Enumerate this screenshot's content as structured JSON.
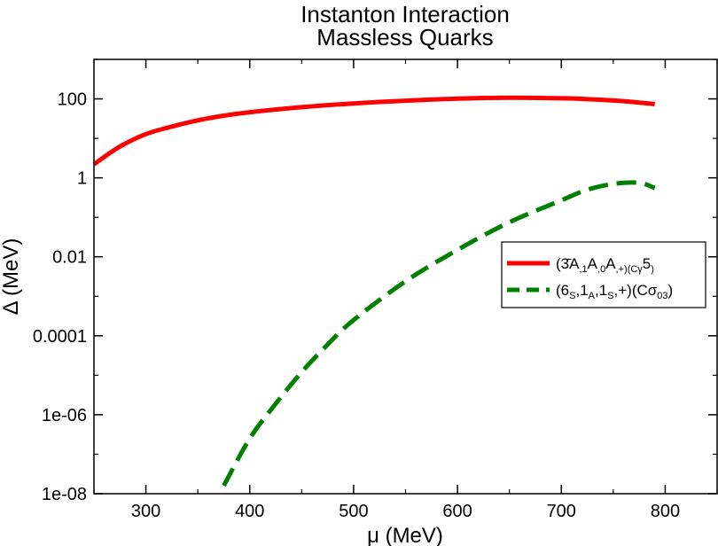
{
  "chart_data": {
    "type": "line",
    "title": "Instanton Interaction",
    "subtitle": "Massless Quarks",
    "xlabel": "μ (MeV)",
    "ylabel": "Δ (MeV)",
    "xlim": [
      250,
      850
    ],
    "ylim": [
      1e-08,
      1000
    ],
    "yscale": "log",
    "x_ticks": [
      300,
      400,
      500,
      600,
      700,
      800
    ],
    "x_tick_labels": [
      "300",
      "400",
      "500",
      "600",
      "700",
      "800"
    ],
    "y_ticks": [
      1e-08,
      1e-06,
      0.0001,
      0.01,
      1,
      100
    ],
    "y_tick_labels": [
      "1e-08",
      "1e-06",
      "0.0001",
      "0.01",
      "1",
      "100"
    ],
    "legend_position": "right",
    "grid": false,
    "series": [
      {
        "name_parts": [
          "(",
          "3̄",
          "A",
          ",1",
          "A",
          ",0",
          "A",
          ",+)(Cγ",
          "5",
          ")"
        ],
        "color": "#ff0000",
        "style": "solid",
        "x": [
          250,
          275,
          300,
          325,
          350,
          375,
          400,
          450,
          500,
          550,
          600,
          650,
          700,
          725,
          750,
          775,
          790
        ],
        "y": [
          2.2,
          6.2,
          12.8,
          19.9,
          28.6,
          37.5,
          46.0,
          61.6,
          76.6,
          90.1,
          101.3,
          107.4,
          103.3,
          98.4,
          90.9,
          80.7,
          73.7
        ]
      },
      {
        "name_parts": [
          "(6",
          "S",
          ",1",
          "A",
          ",1",
          "S",
          ",+)(Cσ",
          "03",
          ")"
        ],
        "color": "#008000",
        "style": "dashed",
        "x": [
          375,
          400,
          425,
          450,
          475,
          500,
          550,
          600,
          650,
          700,
          725,
          750,
          775,
          790
        ],
        "y": [
          1.6e-08,
          2.5e-07,
          1.9e-06,
          1.2e-05,
          6e-05,
          0.00025,
          0.0024,
          0.015,
          0.075,
          0.27,
          0.5,
          0.7,
          0.75,
          0.55
        ]
      }
    ]
  }
}
